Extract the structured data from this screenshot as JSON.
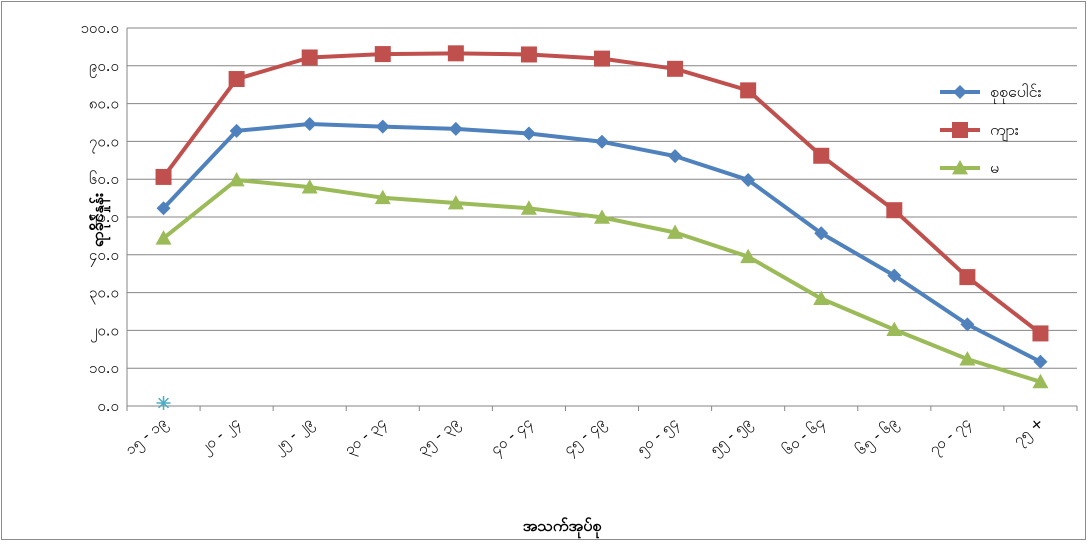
{
  "chart_data": {
    "type": "line",
    "categories": [
      "၁၅ - ၁၉",
      "၂၀ - ၂၄",
      "၂၅ - ၂၉",
      "၃၀ - ၃၄",
      "၃၅ - ၃၉",
      "၄၀ - ၄၄",
      "၄၅ - ၄၉",
      "၅၀ - ၅၄",
      "၅၅ - ၅၉",
      "၆၀ - ၆၄",
      "၆၅ - ၆၉",
      "၇၀ - ၇၄",
      "၇၅ +"
    ],
    "series": [
      {
        "name": "စုစုပေါင်း",
        "color": "#4F81BD",
        "marker": "diamond",
        "values": [
          52.3,
          72.8,
          74.6,
          73.9,
          73.3,
          72.1,
          69.9,
          66.1,
          59.8,
          45.7,
          34.5,
          21.6,
          11.7
        ]
      },
      {
        "name": "ကျား",
        "color": "#C0504D",
        "marker": "square",
        "values": [
          60.6,
          86.5,
          92.2,
          93.1,
          93.3,
          93.0,
          91.9,
          89.2,
          83.5,
          66.2,
          51.8,
          34.1,
          19.2
        ]
      },
      {
        "name": "မ",
        "color": "#9BBB59",
        "marker": "triangle",
        "values": [
          44.4,
          59.8,
          57.9,
          55.1,
          53.7,
          52.3,
          49.9,
          45.9,
          39.5,
          28.4,
          20.2,
          12.4,
          6.4
        ]
      }
    ],
    "ylim": [
      0,
      100
    ],
    "y_ticks": [
      "၀.၀",
      "၁၀.၀",
      "၂၀.၀",
      "၃၀.၀",
      "၄၀.၀",
      "၅၀.၀",
      "၆၀.၀",
      "၇၀.၀",
      "၈၀.၀",
      "၉၀.၀",
      "၁၀၀.၀"
    ],
    "xlabel": "အသက်အုပ်စု",
    "ylabel": "ရာခိုင်နှုန်း",
    "grid": true,
    "legend_position": "right",
    "stray_marker": {
      "shape": "asterisk",
      "color": "#4BACC6",
      "category_index": 0,
      "value": 0
    }
  }
}
